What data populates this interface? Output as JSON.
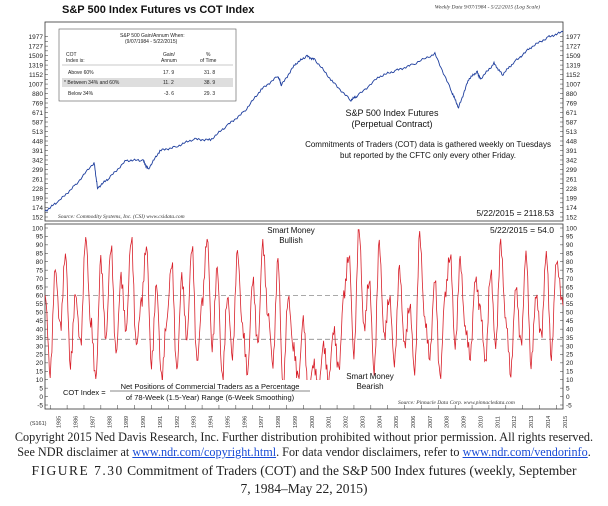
{
  "chart_data": [
    {
      "type": "line",
      "title": "S&P 500 Index Futures vs COT Index",
      "header_note": "Weekly Data 9/07/1984 - 5/22/2015 (Log Scale)",
      "series_label_1": "S&P 500 Index Futures",
      "series_label_2": "(Perpetual Contract)",
      "annotation_1": "Commitments of Traders (COT) data is gathered weekly on Tuesdays",
      "annotation_2": "but reported by the CFTC only every other Friday.",
      "last_value_label": "5/22/2015 = 2118.53",
      "source": "Source: Commodity Systems, Inc. (CSI) www.csidata.com",
      "yscale": "log",
      "ylim": [
        152,
        2300
      ],
      "yticks": [
        152,
        162,
        174,
        186,
        199,
        213,
        228,
        244,
        261,
        280,
        299,
        320,
        342,
        366,
        391,
        419,
        448,
        479,
        513,
        548,
        587,
        628,
        671,
        718,
        769,
        822,
        880,
        941,
        1007,
        1077,
        1152,
        1233,
        1319,
        1411,
        1509,
        1615,
        1727,
        1848,
        1977
      ],
      "xlim": [
        1984.69,
        2015.39
      ],
      "x": [
        1984.69,
        1985.5,
        1986.5,
        1987.6,
        1987.8,
        1988.5,
        1989.5,
        1990.5,
        1990.8,
        1991.5,
        1992.5,
        1993.5,
        1994.5,
        1995.5,
        1996.5,
        1997.5,
        1998.5,
        1998.7,
        1999.5,
        2000.2,
        2000.7,
        2001.7,
        2002.8,
        2003.2,
        2004.5,
        2005.5,
        2006.5,
        2007.8,
        2008.8,
        2009.2,
        2009.8,
        2010.3,
        2010.5,
        2011.3,
        2011.8,
        2012.5,
        2013.5,
        2014.5,
        2015.39
      ],
      "values": [
        165,
        190,
        240,
        330,
        230,
        265,
        340,
        340,
        300,
        390,
        415,
        460,
        455,
        560,
        680,
        930,
        1130,
        990,
        1330,
        1500,
        1420,
        1050,
        800,
        850,
        1120,
        1220,
        1330,
        1550,
        900,
        720,
        1080,
        1200,
        1080,
        1350,
        1150,
        1380,
        1700,
        1960,
        2118.53
      ],
      "stats_table": {
        "title_1": "S&P  500  Gain/Annum     When:",
        "title_2": "(9/07/1984 - 5/22/2015)",
        "col_1": [
          "COT",
          "Index  is:"
        ],
        "col_2": [
          "Gain/",
          "Annum"
        ],
        "col_3": [
          "%",
          "of  Time"
        ],
        "rows": [
          {
            "label": "Above   60%",
            "gain": "17. 9",
            "time": "31. 8"
          },
          {
            "label": "*  Between    34%   and   60%",
            "gain": "11. 2",
            "time": "38. 9"
          },
          {
            "label": "Below   34%",
            "gain": "-3. 6",
            "time": "29. 3"
          }
        ]
      }
    },
    {
      "type": "line",
      "ylim": [
        -5,
        100
      ],
      "yticks": [
        -5,
        0,
        5,
        10,
        15,
        20,
        25,
        30,
        35,
        40,
        45,
        50,
        55,
        60,
        65,
        70,
        75,
        80,
        85,
        90,
        95,
        100
      ],
      "reference_lines": [
        60,
        34
      ],
      "last_value_label": "5/22/2015 = 54.0",
      "upper_label_1": "Smart Money",
      "upper_label_2": "Bullish",
      "lower_label_1": "Smart Money",
      "lower_label_2": "Bearish",
      "formula_left": "COT Index =",
      "formula_numerator": "Net Positions of Commercial Traders as a Percentage",
      "formula_denominator": "of 78-Week (1.5-Year) Range (6-Week Smoothing)",
      "source": "Source: Pinnacle Data Corp.  www.pinnacledata.com",
      "chart_id": "(S161)",
      "xlim": [
        1984.69,
        2015.39
      ],
      "x_tick_labels": [
        "1985",
        "1986",
        "1987",
        "1988",
        "1989",
        "1990",
        "1991",
        "1992",
        "1993",
        "1994",
        "1995",
        "1996",
        "1997",
        "1998",
        "1999",
        "2000",
        "2001",
        "2002",
        "2003",
        "2004",
        "2005",
        "2006",
        "2007",
        "2008",
        "2009",
        "2010",
        "2011",
        "2012",
        "2013",
        "2014",
        "2015"
      ],
      "x": [
        1984.7,
        1985.0,
        1985.3,
        1985.6,
        1985.9,
        1986.2,
        1986.5,
        1986.8,
        1987.1,
        1987.4,
        1987.7,
        1988.0,
        1988.3,
        1988.6,
        1988.9,
        1989.2,
        1989.5,
        1989.8,
        1990.1,
        1990.4,
        1990.7,
        1991.0,
        1991.3,
        1991.6,
        1991.9,
        1992.2,
        1992.5,
        1992.8,
        1993.1,
        1993.4,
        1993.7,
        1994.0,
        1994.3,
        1994.6,
        1994.9,
        1995.2,
        1995.5,
        1995.8,
        1996.1,
        1996.4,
        1996.7,
        1997.0,
        1997.3,
        1997.6,
        1997.9,
        1998.2,
        1998.5,
        1998.8,
        1999.1,
        1999.4,
        1999.7,
        2000.0,
        2000.3,
        2000.6,
        2000.9,
        2001.2,
        2001.5,
        2001.8,
        2002.1,
        2002.4,
        2002.7,
        2003.0,
        2003.3,
        2003.6,
        2003.9,
        2004.2,
        2004.5,
        2004.8,
        2005.1,
        2005.4,
        2005.7,
        2006.0,
        2006.3,
        2006.6,
        2006.9,
        2007.2,
        2007.5,
        2007.8,
        2008.1,
        2008.4,
        2008.7,
        2009.0,
        2009.3,
        2009.6,
        2009.9,
        2010.2,
        2010.5,
        2010.8,
        2011.1,
        2011.4,
        2011.7,
        2012.0,
        2012.3,
        2012.6,
        2012.9,
        2013.2,
        2013.5,
        2013.8,
        2014.1,
        2014.4,
        2014.7,
        2015.0,
        2015.39
      ],
      "values": [
        60,
        15,
        75,
        40,
        85,
        20,
        60,
        30,
        95,
        45,
        10,
        80,
        35,
        90,
        25,
        70,
        40,
        95,
        30,
        55,
        90,
        20,
        65,
        10,
        45,
        80,
        15,
        70,
        35,
        90,
        20,
        55,
        95,
        30,
        75,
        10,
        60,
        25,
        85,
        40,
        15,
        70,
        30,
        90,
        50,
        20,
        80,
        5,
        60,
        30,
        10,
        45,
        0,
        20,
        5,
        30,
        10,
        40,
        15,
        60,
        85,
        25,
        100,
        40,
        70,
        15,
        90,
        35,
        60,
        20,
        75,
        30,
        55,
        15,
        95,
        45,
        25,
        70,
        10,
        60,
        85,
        30,
        80,
        40,
        25,
        70,
        50,
        20,
        75,
        30,
        90,
        45,
        15,
        65,
        30,
        85,
        20,
        60,
        35,
        85,
        25,
        80,
        54
      ]
    }
  ],
  "footer": {
    "copyright_1": "Copyright 2015 Ned Davis Research, Inc. Further distribution prohibited without prior permission. All rights reserved.",
    "copyright_2a": "See NDR disclaimer at ",
    "link_1": "www.ndr.com/copyright.html",
    "copyright_2b": ". For data vendor disclaimers, refer to ",
    "link_2": "www.ndr.com/vendorinfo",
    "copyright_2c": ".",
    "figure_label": "FIGURE 7.30",
    "figure_title_1": " Commitment of Traders (COT) and the S&P 500 Index futures (weekly, September",
    "figure_title_2": "7, 1984–May 22, 2015)"
  }
}
